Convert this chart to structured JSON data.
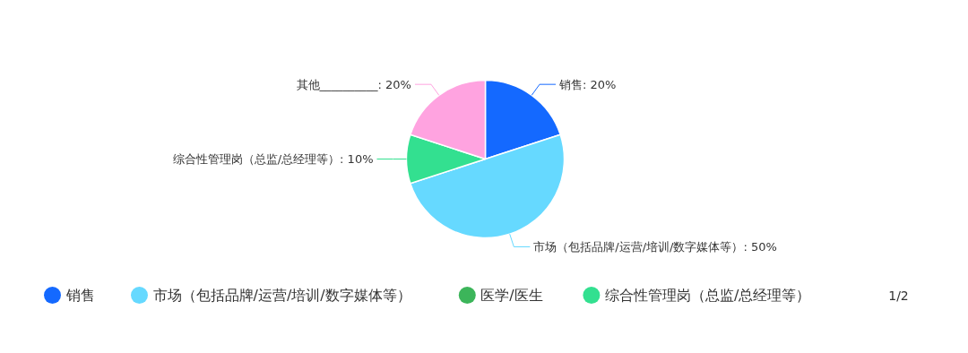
{
  "chart_data": {
    "type": "pie",
    "categories": [
      "销售",
      "市场（包括品牌/运营/培训/数字媒体等）",
      "医学/医生",
      "综合性管理岗（总监/总经理等）",
      "其他__________"
    ],
    "values": [
      20,
      50,
      0,
      10,
      20
    ],
    "value_labels": [
      ": 20%",
      ": 50%",
      null,
      ": 10%",
      ": 20%"
    ],
    "colors": [
      "#1469ff",
      "#66d9ff",
      "#3cb55a",
      "#33e090",
      "#ffa3e0"
    ],
    "legend": "bottom",
    "annotations": [
      "1/2"
    ]
  }
}
